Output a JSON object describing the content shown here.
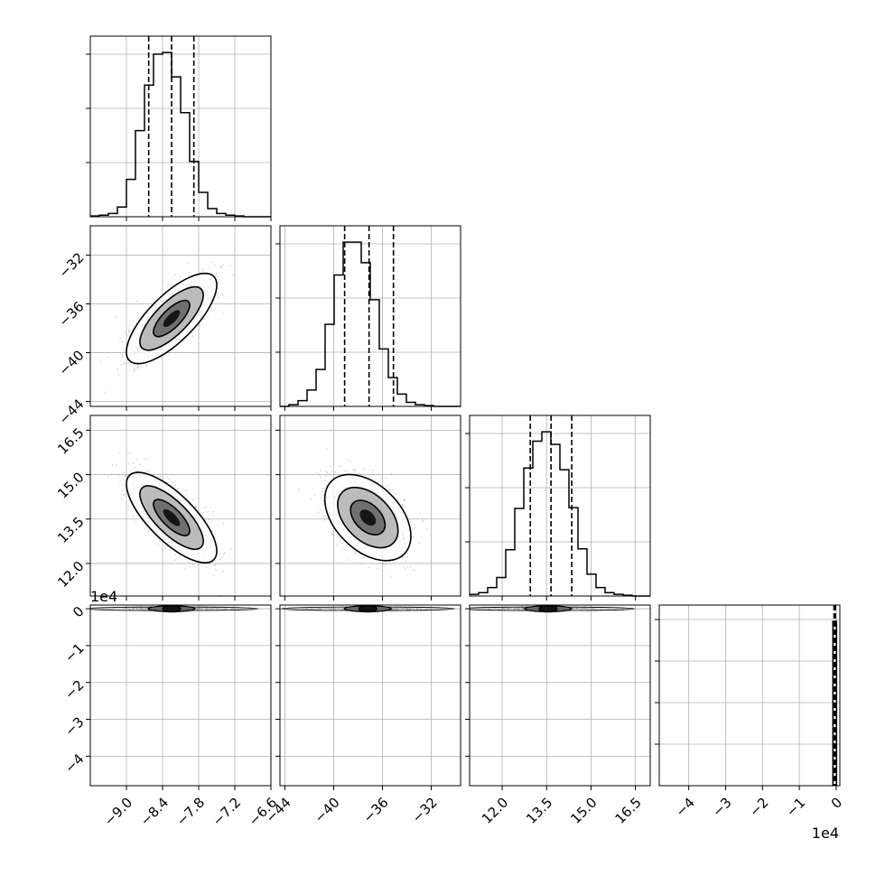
{
  "chart_data": {
    "type": "corner",
    "description_note": "",
    "colors": {
      "line": "#000000",
      "grid": "#b0b0b0",
      "points": "#808080",
      "frame": "#000000"
    },
    "grid": true,
    "axes_text": {
      "x_offset_label": "1e4",
      "y_offset_label": "1e4"
    },
    "parameters": [
      {
        "index": 0,
        "range": [
          -9.6,
          -6.6
        ],
        "ticks": [
          -9.0,
          -8.4,
          -7.8,
          -7.2,
          -6.6
        ],
        "tick_labels": [
          "−9.0",
          "−8.4",
          "−7.8",
          "−7.2",
          "−6.6"
        ],
        "quantiles": [
          -8.63,
          -8.25,
          -7.88
        ],
        "hist_bins": [
          -9.6,
          -9.45,
          -9.3,
          -9.15,
          -9.0,
          -8.85,
          -8.7,
          -8.55,
          -8.4,
          -8.25,
          -8.1,
          -7.95,
          -7.8,
          -7.65,
          -7.5,
          -7.35,
          -7.2,
          -7.05,
          -6.9,
          -6.75,
          -6.6
        ],
        "hist_counts": [
          1,
          2,
          4,
          12,
          46,
          106,
          162,
          200,
          202,
          172,
          128,
          68,
          30,
          10,
          4,
          2,
          1,
          0,
          0,
          0
        ]
      },
      {
        "index": 1,
        "range": [
          -44.4,
          -29.6
        ],
        "ticks": [
          -44,
          -40,
          -36,
          -32
        ],
        "tick_labels": [
          "−44",
          "−40",
          "−36",
          "−32"
        ],
        "quantiles": [
          -39.1,
          -37.1,
          -35.1
        ],
        "hist_bins": [
          -44.4,
          -43.66,
          -42.92,
          -42.18,
          -41.44,
          -40.7,
          -39.96,
          -39.22,
          -38.48,
          -37.74,
          -37.0,
          -36.26,
          -35.52,
          -34.78,
          -34.04,
          -33.3,
          -32.56,
          -31.82,
          -31.08,
          -30.34,
          -29.6
        ],
        "hist_counts": [
          0,
          2,
          7,
          20,
          45,
          100,
          160,
          200,
          200,
          175,
          130,
          70,
          35,
          15,
          5,
          2,
          1,
          0,
          0,
          0
        ]
      },
      {
        "index": 2,
        "range": [
          10.9,
          17.0
        ],
        "ticks": [
          12.0,
          13.5,
          15.0,
          16.5
        ],
        "tick_labels": [
          "12.0",
          "13.5",
          "15.0",
          "16.5"
        ],
        "quantiles": [
          12.95,
          13.65,
          14.35
        ],
        "hist_bins": [
          10.9,
          11.205,
          11.51,
          11.815,
          12.12,
          12.425,
          12.73,
          13.035,
          13.34,
          13.645,
          13.95,
          14.255,
          14.56,
          14.865,
          15.17,
          15.475,
          15.78,
          16.085,
          16.39,
          16.695,
          17.0
        ],
        "hist_counts": [
          2,
          4,
          10,
          22,
          55,
          104,
          152,
          184,
          195,
          180,
          150,
          105,
          56,
          26,
          10,
          4,
          2,
          1,
          0,
          0
        ]
      },
      {
        "index": 3,
        "range": [
          -4.8,
          0.1
        ],
        "ticks": [
          -4,
          -3,
          -2,
          -1,
          0
        ],
        "tick_labels": [
          "−4",
          "−3",
          "−2",
          "−1",
          "0"
        ],
        "quantiles": [
          -0.06,
          -0.04,
          -0.02
        ]
      }
    ],
    "bivariate": [
      {
        "x": 0,
        "y": 1,
        "center": [
          -8.25,
          -37.2
        ],
        "rho": 0.82
      },
      {
        "x": 0,
        "y": 2,
        "center": [
          -8.25,
          13.55
        ],
        "rho": -0.75
      },
      {
        "x": 1,
        "y": 2,
        "center": [
          -37.2,
          13.55
        ],
        "rho": -0.62
      },
      {
        "x": 0,
        "y": 3,
        "center": [
          -8.25,
          -0.02
        ],
        "rho": 0
      },
      {
        "x": 1,
        "y": 3,
        "center": [
          -37.2,
          -0.02
        ],
        "rho": 0
      },
      {
        "x": 2,
        "y": 3,
        "center": [
          13.55,
          -0.02
        ],
        "rho": 0
      }
    ]
  }
}
